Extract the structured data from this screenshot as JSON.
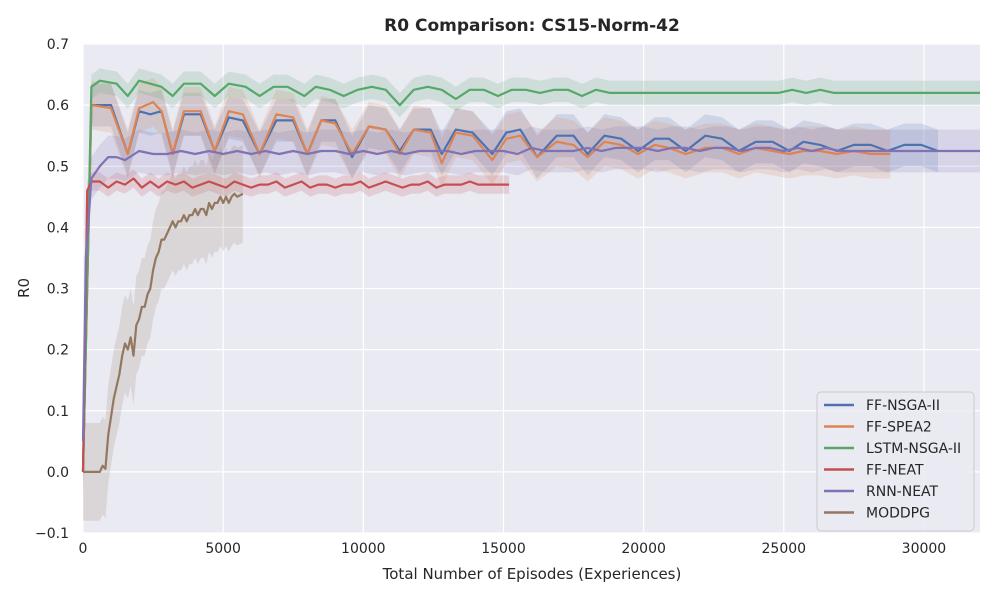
{
  "chart_data": {
    "type": "line",
    "title": "R0 Comparison: CS15-Norm-42",
    "xlabel": "Total Number of Episodes (Experiences)",
    "ylabel": "R0",
    "xlim": [
      0,
      32000
    ],
    "ylim": [
      -0.1,
      0.7
    ],
    "xticks": [
      0,
      5000,
      10000,
      15000,
      20000,
      25000,
      30000
    ],
    "xtick_labels": [
      "0",
      "5000",
      "10000",
      "15000",
      "20000",
      "25000",
      "30000"
    ],
    "yticks": [
      -0.1,
      0.0,
      0.1,
      0.2,
      0.3,
      0.4,
      0.5,
      0.6,
      0.7
    ],
    "ytick_labels": [
      "−0.1",
      "0.0",
      "0.1",
      "0.2",
      "0.3",
      "0.4",
      "0.5",
      "0.6",
      "0.7"
    ],
    "grid": true,
    "legend_position": "lower-right",
    "background": "#eaeaf2",
    "series": [
      {
        "name": "FF-NSGA-II",
        "color": "#4c72b0",
        "x": [
          0,
          300,
          1000,
          1600,
          2000,
          2400,
          2800,
          3200,
          3600,
          4200,
          4700,
          5200,
          5700,
          6300,
          6900,
          7500,
          8000,
          8500,
          9000,
          9600,
          10200,
          10800,
          11300,
          11800,
          12400,
          12800,
          13300,
          13900,
          14600,
          15100,
          15600,
          16200,
          16900,
          17500,
          18000,
          18600,
          19200,
          19800,
          20400,
          20900,
          21500,
          22200,
          22800,
          23400,
          24000,
          24600,
          25200,
          25700,
          26300,
          26900,
          27500,
          28100,
          28700,
          29300,
          29900,
          30500
        ],
        "y": [
          0.0,
          0.6,
          0.6,
          0.52,
          0.59,
          0.585,
          0.59,
          0.52,
          0.585,
          0.585,
          0.525,
          0.58,
          0.575,
          0.52,
          0.575,
          0.575,
          0.52,
          0.575,
          0.575,
          0.515,
          0.565,
          0.56,
          0.525,
          0.56,
          0.56,
          0.52,
          0.56,
          0.555,
          0.52,
          0.555,
          0.56,
          0.515,
          0.55,
          0.55,
          0.52,
          0.55,
          0.545,
          0.525,
          0.545,
          0.545,
          0.525,
          0.55,
          0.545,
          0.525,
          0.54,
          0.54,
          0.525,
          0.54,
          0.535,
          0.525,
          0.535,
          0.535,
          0.525,
          0.535,
          0.535,
          0.525
        ],
        "band": 0.035
      },
      {
        "name": "FF-SPEA2",
        "color": "#dd8452",
        "x": [
          0,
          300,
          1000,
          1600,
          2000,
          2500,
          2800,
          3200,
          3600,
          4200,
          4700,
          5200,
          5700,
          6300,
          6900,
          7500,
          8000,
          8500,
          9000,
          9600,
          10200,
          10800,
          11300,
          11800,
          12400,
          12800,
          13300,
          13900,
          14600,
          15100,
          15600,
          16200,
          16900,
          17500,
          18000,
          18600,
          19200,
          19800,
          20400,
          20900,
          21500,
          22200,
          22800,
          23400,
          24000,
          24600,
          25200,
          25700,
          26300,
          26900,
          27500,
          28100,
          28800
        ],
        "y": [
          0.0,
          0.6,
          0.595,
          0.52,
          0.595,
          0.605,
          0.59,
          0.52,
          0.59,
          0.59,
          0.525,
          0.59,
          0.585,
          0.52,
          0.585,
          0.58,
          0.52,
          0.575,
          0.57,
          0.52,
          0.565,
          0.56,
          0.52,
          0.56,
          0.555,
          0.505,
          0.555,
          0.55,
          0.51,
          0.545,
          0.55,
          0.515,
          0.54,
          0.535,
          0.515,
          0.54,
          0.535,
          0.52,
          0.535,
          0.53,
          0.52,
          0.53,
          0.53,
          0.52,
          0.53,
          0.525,
          0.52,
          0.525,
          0.525,
          0.52,
          0.525,
          0.52,
          0.52
        ],
        "band": 0.04
      },
      {
        "name": "LSTM-NSGA-II",
        "color": "#55a868",
        "x": [
          0,
          300,
          600,
          1200,
          1600,
          2000,
          2400,
          2800,
          3200,
          3600,
          4200,
          4700,
          5200,
          5800,
          6300,
          6800,
          7300,
          7900,
          8300,
          8800,
          9300,
          9800,
          10300,
          10800,
          11300,
          11800,
          12300,
          12800,
          13300,
          13800,
          14300,
          14800,
          15300,
          15800,
          16300,
          16800,
          17300,
          17800,
          18300,
          18800,
          19300,
          19800,
          20300,
          20800,
          21300,
          21800,
          22300,
          22800,
          23300,
          23800,
          24300,
          24800,
          25300,
          25800,
          26300,
          26800,
          27300,
          27800,
          28300,
          28800,
          29300,
          29800,
          30300,
          30800,
          31300,
          32000
        ],
        "y": [
          0.0,
          0.63,
          0.64,
          0.635,
          0.615,
          0.64,
          0.635,
          0.63,
          0.615,
          0.635,
          0.635,
          0.615,
          0.635,
          0.63,
          0.615,
          0.63,
          0.63,
          0.615,
          0.63,
          0.625,
          0.615,
          0.625,
          0.63,
          0.625,
          0.6,
          0.625,
          0.63,
          0.625,
          0.61,
          0.625,
          0.625,
          0.615,
          0.625,
          0.625,
          0.62,
          0.625,
          0.625,
          0.615,
          0.625,
          0.62,
          0.62,
          0.62,
          0.62,
          0.62,
          0.62,
          0.62,
          0.62,
          0.62,
          0.62,
          0.62,
          0.62,
          0.62,
          0.625,
          0.62,
          0.625,
          0.62,
          0.62,
          0.62,
          0.62,
          0.62,
          0.62,
          0.62,
          0.62,
          0.62,
          0.62,
          0.62
        ],
        "band": 0.02
      },
      {
        "name": "FF-NEAT",
        "color": "#c44e52",
        "x": [
          0,
          150,
          300,
          600,
          900,
          1200,
          1500,
          1800,
          2100,
          2400,
          2700,
          3000,
          3300,
          3600,
          3900,
          4200,
          4500,
          4800,
          5100,
          5400,
          5700,
          6000,
          6300,
          6600,
          6900,
          7200,
          7500,
          7800,
          8100,
          8400,
          8700,
          9000,
          9300,
          9600,
          9900,
          10200,
          10500,
          10800,
          11100,
          11400,
          11700,
          12000,
          12300,
          12600,
          12900,
          13200,
          13500,
          13800,
          14100,
          14400,
          14700,
          15000,
          15200
        ],
        "y": [
          0.0,
          0.46,
          0.475,
          0.475,
          0.465,
          0.475,
          0.47,
          0.48,
          0.465,
          0.475,
          0.465,
          0.475,
          0.47,
          0.475,
          0.465,
          0.47,
          0.475,
          0.47,
          0.465,
          0.475,
          0.47,
          0.465,
          0.47,
          0.47,
          0.475,
          0.465,
          0.47,
          0.475,
          0.465,
          0.47,
          0.47,
          0.465,
          0.47,
          0.47,
          0.475,
          0.465,
          0.47,
          0.475,
          0.47,
          0.465,
          0.47,
          0.47,
          0.475,
          0.465,
          0.47,
          0.47,
          0.47,
          0.475,
          0.47,
          0.47,
          0.47,
          0.47,
          0.47
        ],
        "band": 0.015
      },
      {
        "name": "RNN-NEAT",
        "color": "#8172b3",
        "x": [
          0,
          100,
          300,
          600,
          900,
          1200,
          1500,
          2000,
          2500,
          3000,
          3500,
          4000,
          4500,
          5000,
          5500,
          6000,
          6500,
          7000,
          7500,
          8000,
          8500,
          9000,
          9500,
          10000,
          10500,
          11000,
          11500,
          12000,
          12500,
          13000,
          13500,
          14000,
          14500,
          15000,
          15500,
          16000,
          16500,
          17000,
          17500,
          18000,
          18500,
          19000,
          19500,
          20000,
          20500,
          21000,
          21500,
          22000,
          22500,
          23000,
          23500,
          24000,
          24500,
          25000,
          25500,
          26000,
          26500,
          27000,
          27500,
          28000,
          28500,
          29000,
          29500,
          30000,
          30500,
          31000,
          31500,
          32000
        ],
        "y": [
          0.05,
          0.35,
          0.48,
          0.5,
          0.515,
          0.515,
          0.51,
          0.525,
          0.52,
          0.52,
          0.525,
          0.52,
          0.525,
          0.52,
          0.525,
          0.52,
          0.525,
          0.52,
          0.525,
          0.52,
          0.525,
          0.525,
          0.52,
          0.525,
          0.52,
          0.525,
          0.52,
          0.525,
          0.525,
          0.525,
          0.52,
          0.525,
          0.525,
          0.525,
          0.52,
          0.53,
          0.525,
          0.525,
          0.525,
          0.53,
          0.525,
          0.53,
          0.53,
          0.53,
          0.525,
          0.53,
          0.53,
          0.525,
          0.53,
          0.53,
          0.525,
          0.53,
          0.53,
          0.525,
          0.53,
          0.525,
          0.53,
          0.525,
          0.525,
          0.525,
          0.525,
          0.525,
          0.525,
          0.525,
          0.525,
          0.525,
          0.525,
          0.525
        ],
        "band": 0.035
      },
      {
        "name": "MODDPG",
        "color": "#937860",
        "x": [
          0,
          300,
          600,
          700,
          800,
          900,
          1000,
          1100,
          1200,
          1300,
          1400,
          1500,
          1600,
          1700,
          1800,
          1900,
          2000,
          2100,
          2200,
          2300,
          2400,
          2500,
          2600,
          2700,
          2800,
          2900,
          3000,
          3100,
          3200,
          3300,
          3400,
          3500,
          3600,
          3700,
          3800,
          3900,
          4000,
          4100,
          4200,
          4300,
          4400,
          4500,
          4600,
          4700,
          4800,
          4900,
          5000,
          5100,
          5200,
          5300,
          5400,
          5500,
          5700
        ],
        "y": [
          0.0,
          0.0,
          0.0,
          0.01,
          0.005,
          0.06,
          0.09,
          0.12,
          0.14,
          0.16,
          0.19,
          0.21,
          0.2,
          0.22,
          0.19,
          0.24,
          0.25,
          0.27,
          0.27,
          0.29,
          0.3,
          0.33,
          0.35,
          0.36,
          0.38,
          0.38,
          0.39,
          0.4,
          0.41,
          0.4,
          0.41,
          0.41,
          0.42,
          0.41,
          0.42,
          0.42,
          0.43,
          0.42,
          0.43,
          0.43,
          0.42,
          0.44,
          0.43,
          0.44,
          0.44,
          0.45,
          0.44,
          0.45,
          0.44,
          0.45,
          0.455,
          0.45,
          0.455
        ],
        "band": 0.08
      }
    ]
  }
}
